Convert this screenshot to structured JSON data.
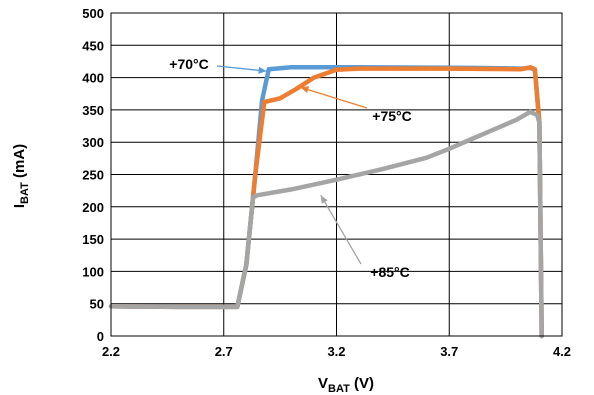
{
  "chart_data": {
    "type": "line",
    "title": "",
    "xlabel": {
      "main": "V",
      "sub": "BAT",
      "unit": " (V)"
    },
    "ylabel": {
      "main": "I",
      "sub": "BAT",
      "unit": " (mA)"
    },
    "xlim": [
      2.2,
      4.2
    ],
    "ylim": [
      0,
      500
    ],
    "xticks": [
      2.2,
      2.7,
      3.2,
      3.7,
      4.2
    ],
    "xtick_labels": [
      "2.2",
      "2.7",
      "3.2",
      "3.7",
      "4.2"
    ],
    "yticks": [
      0,
      50,
      100,
      150,
      200,
      250,
      300,
      350,
      400,
      450,
      500
    ],
    "ytick_labels": [
      "0",
      "50",
      "100",
      "150",
      "200",
      "250",
      "300",
      "350",
      "400",
      "450",
      "500"
    ],
    "grid": true,
    "legend": "none",
    "series": [
      {
        "color": "#5b9bd5",
        "points": [
          [
            2.2,
            46
          ],
          [
            2.5,
            45
          ],
          [
            2.72,
            45
          ],
          [
            2.76,
            45
          ],
          [
            2.8,
            110
          ],
          [
            2.84,
            250
          ],
          [
            2.87,
            365
          ],
          [
            2.9,
            413
          ],
          [
            3.0,
            416
          ],
          [
            3.3,
            416
          ],
          [
            3.8,
            415
          ],
          [
            4.02,
            414
          ],
          [
            4.06,
            415
          ],
          [
            4.08,
            412
          ],
          [
            4.1,
            330
          ],
          [
            4.11,
            0
          ]
        ]
      },
      {
        "color": "#ed7d31",
        "points": [
          [
            2.2,
            46
          ],
          [
            2.5,
            45
          ],
          [
            2.72,
            45
          ],
          [
            2.76,
            45
          ],
          [
            2.8,
            110
          ],
          [
            2.84,
            250
          ],
          [
            2.88,
            362
          ],
          [
            2.95,
            368
          ],
          [
            3.02,
            382
          ],
          [
            3.1,
            400
          ],
          [
            3.2,
            412
          ],
          [
            3.3,
            414
          ],
          [
            3.7,
            414
          ],
          [
            4.02,
            413
          ],
          [
            4.06,
            416
          ],
          [
            4.08,
            413
          ],
          [
            4.1,
            330
          ],
          [
            4.11,
            0
          ]
        ]
      },
      {
        "color": "#a5a5a5",
        "points": [
          [
            2.2,
            46
          ],
          [
            2.5,
            45
          ],
          [
            2.72,
            45
          ],
          [
            2.76,
            45
          ],
          [
            2.8,
            110
          ],
          [
            2.83,
            215
          ],
          [
            2.85,
            218
          ],
          [
            3.0,
            227
          ],
          [
            3.2,
            242
          ],
          [
            3.4,
            258
          ],
          [
            3.6,
            276
          ],
          [
            3.7,
            290
          ],
          [
            3.8,
            305
          ],
          [
            3.9,
            320
          ],
          [
            4.0,
            335
          ],
          [
            4.06,
            347
          ],
          [
            4.09,
            342
          ],
          [
            4.1,
            330
          ],
          [
            4.11,
            0
          ]
        ]
      }
    ],
    "annotations": [
      {
        "text": "+70°C",
        "series": 0,
        "target": [
          2.89,
          410
        ]
      },
      {
        "text": "+75°C",
        "series": 1,
        "target": [
          3.04,
          385
        ]
      },
      {
        "text": "+85°C",
        "series": 2,
        "target": [
          3.13,
          218
        ]
      }
    ]
  }
}
